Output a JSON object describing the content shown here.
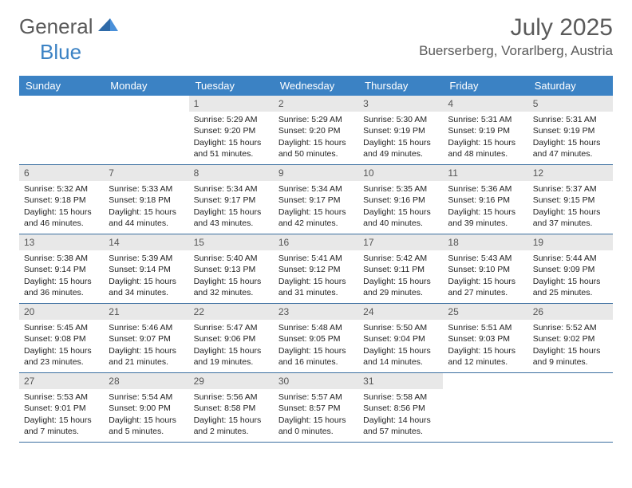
{
  "logo": {
    "text1": "General",
    "text2": "Blue"
  },
  "title": "July 2025",
  "location": "Buerserberg, Vorarlberg, Austria",
  "colors": {
    "header_bg": "#3b82c4",
    "header_text": "#ffffff",
    "daynum_bg": "#e8e8e8",
    "row_border": "#3b6fa0",
    "logo_gray": "#5a5a5a",
    "logo_blue": "#3b82c4"
  },
  "weekdays": [
    "Sunday",
    "Monday",
    "Tuesday",
    "Wednesday",
    "Thursday",
    "Friday",
    "Saturday"
  ],
  "weeks": [
    [
      null,
      null,
      {
        "n": "1",
        "sr": "5:29 AM",
        "ss": "9:20 PM",
        "dl": "15 hours and 51 minutes."
      },
      {
        "n": "2",
        "sr": "5:29 AM",
        "ss": "9:20 PM",
        "dl": "15 hours and 50 minutes."
      },
      {
        "n": "3",
        "sr": "5:30 AM",
        "ss": "9:19 PM",
        "dl": "15 hours and 49 minutes."
      },
      {
        "n": "4",
        "sr": "5:31 AM",
        "ss": "9:19 PM",
        "dl": "15 hours and 48 minutes."
      },
      {
        "n": "5",
        "sr": "5:31 AM",
        "ss": "9:19 PM",
        "dl": "15 hours and 47 minutes."
      }
    ],
    [
      {
        "n": "6",
        "sr": "5:32 AM",
        "ss": "9:18 PM",
        "dl": "15 hours and 46 minutes."
      },
      {
        "n": "7",
        "sr": "5:33 AM",
        "ss": "9:18 PM",
        "dl": "15 hours and 44 minutes."
      },
      {
        "n": "8",
        "sr": "5:34 AM",
        "ss": "9:17 PM",
        "dl": "15 hours and 43 minutes."
      },
      {
        "n": "9",
        "sr": "5:34 AM",
        "ss": "9:17 PM",
        "dl": "15 hours and 42 minutes."
      },
      {
        "n": "10",
        "sr": "5:35 AM",
        "ss": "9:16 PM",
        "dl": "15 hours and 40 minutes."
      },
      {
        "n": "11",
        "sr": "5:36 AM",
        "ss": "9:16 PM",
        "dl": "15 hours and 39 minutes."
      },
      {
        "n": "12",
        "sr": "5:37 AM",
        "ss": "9:15 PM",
        "dl": "15 hours and 37 minutes."
      }
    ],
    [
      {
        "n": "13",
        "sr": "5:38 AM",
        "ss": "9:14 PM",
        "dl": "15 hours and 36 minutes."
      },
      {
        "n": "14",
        "sr": "5:39 AM",
        "ss": "9:14 PM",
        "dl": "15 hours and 34 minutes."
      },
      {
        "n": "15",
        "sr": "5:40 AM",
        "ss": "9:13 PM",
        "dl": "15 hours and 32 minutes."
      },
      {
        "n": "16",
        "sr": "5:41 AM",
        "ss": "9:12 PM",
        "dl": "15 hours and 31 minutes."
      },
      {
        "n": "17",
        "sr": "5:42 AM",
        "ss": "9:11 PM",
        "dl": "15 hours and 29 minutes."
      },
      {
        "n": "18",
        "sr": "5:43 AM",
        "ss": "9:10 PM",
        "dl": "15 hours and 27 minutes."
      },
      {
        "n": "19",
        "sr": "5:44 AM",
        "ss": "9:09 PM",
        "dl": "15 hours and 25 minutes."
      }
    ],
    [
      {
        "n": "20",
        "sr": "5:45 AM",
        "ss": "9:08 PM",
        "dl": "15 hours and 23 minutes."
      },
      {
        "n": "21",
        "sr": "5:46 AM",
        "ss": "9:07 PM",
        "dl": "15 hours and 21 minutes."
      },
      {
        "n": "22",
        "sr": "5:47 AM",
        "ss": "9:06 PM",
        "dl": "15 hours and 19 minutes."
      },
      {
        "n": "23",
        "sr": "5:48 AM",
        "ss": "9:05 PM",
        "dl": "15 hours and 16 minutes."
      },
      {
        "n": "24",
        "sr": "5:50 AM",
        "ss": "9:04 PM",
        "dl": "15 hours and 14 minutes."
      },
      {
        "n": "25",
        "sr": "5:51 AM",
        "ss": "9:03 PM",
        "dl": "15 hours and 12 minutes."
      },
      {
        "n": "26",
        "sr": "5:52 AM",
        "ss": "9:02 PM",
        "dl": "15 hours and 9 minutes."
      }
    ],
    [
      {
        "n": "27",
        "sr": "5:53 AM",
        "ss": "9:01 PM",
        "dl": "15 hours and 7 minutes."
      },
      {
        "n": "28",
        "sr": "5:54 AM",
        "ss": "9:00 PM",
        "dl": "15 hours and 5 minutes."
      },
      {
        "n": "29",
        "sr": "5:56 AM",
        "ss": "8:58 PM",
        "dl": "15 hours and 2 minutes."
      },
      {
        "n": "30",
        "sr": "5:57 AM",
        "ss": "8:57 PM",
        "dl": "15 hours and 0 minutes."
      },
      {
        "n": "31",
        "sr": "5:58 AM",
        "ss": "8:56 PM",
        "dl": "14 hours and 57 minutes."
      },
      null,
      null
    ]
  ],
  "labels": {
    "sunrise": "Sunrise:",
    "sunset": "Sunset:",
    "daylight": "Daylight:"
  }
}
